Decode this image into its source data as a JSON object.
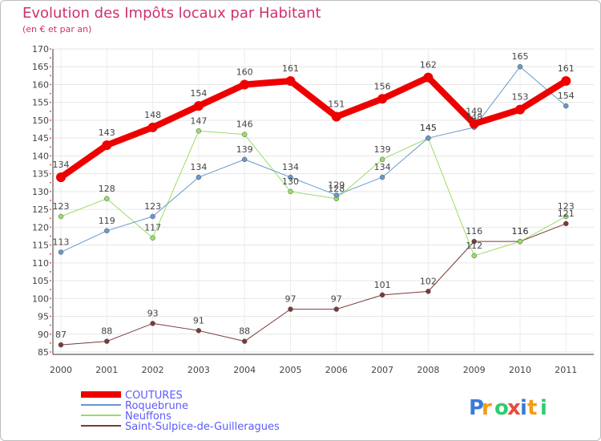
{
  "title": "Evolution des Impôts locaux par Habitant",
  "subtitle": "(en € et par an)",
  "brand": {
    "name": "Proxiti",
    "letters": [
      "P",
      "r",
      "o",
      "x",
      "i",
      "t",
      "i"
    ],
    "colors": [
      "#3a7bd5",
      "#f39c12",
      "#2ecc71",
      "#e74c3c",
      "#3a7bd5",
      "#f39c12",
      "#2ecc71"
    ]
  },
  "chart_data": {
    "type": "line",
    "title": "Evolution des Impôts locaux par Habitant",
    "subtitle": "(en € et par an)",
    "x": [
      "2000",
      "2001",
      "2002",
      "2003",
      "2004",
      "2005",
      "2006",
      "2007",
      "2008",
      "2009",
      "2010",
      "2011"
    ],
    "ylim": [
      85,
      170
    ],
    "yticks": [
      85,
      90,
      95,
      100,
      105,
      110,
      115,
      120,
      125,
      130,
      135,
      140,
      145,
      150,
      155,
      160,
      165,
      170
    ],
    "grid": true,
    "legend_position": "bottom-left",
    "series": [
      {
        "name": "COUTURES",
        "color": "#ee0000",
        "width": 8,
        "marker": 6,
        "values": [
          134,
          143,
          148,
          154,
          160,
          161,
          151,
          156,
          162,
          149,
          153,
          161
        ]
      },
      {
        "name": "Roquebrune",
        "color": "#6699cc",
        "width": 1,
        "marker": 3,
        "values": [
          113,
          119,
          123,
          134,
          139,
          134,
          129,
          134,
          145,
          148,
          165,
          154
        ]
      },
      {
        "name": "Neuffons",
        "color": "#99dd66",
        "width": 1,
        "marker": 3,
        "values": [
          123,
          128,
          117,
          147,
          146,
          130,
          128,
          139,
          145,
          112,
          116,
          123
        ]
      },
      {
        "name": "Saint-Sulpice-de-Guilleragues",
        "color": "#7a3a3a",
        "width": 1,
        "marker": 3,
        "values": [
          87,
          88,
          93,
          91,
          88,
          97,
          97,
          101,
          102,
          116,
          116,
          121
        ]
      }
    ]
  }
}
